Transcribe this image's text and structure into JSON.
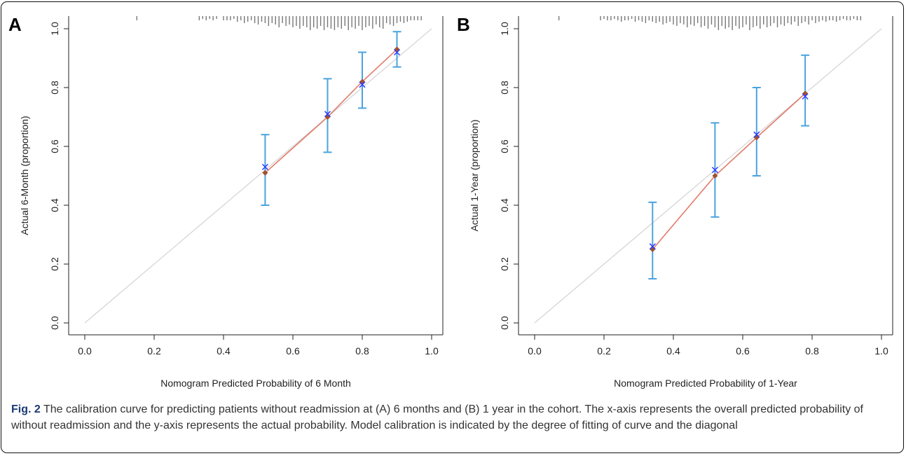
{
  "chart_data": [
    {
      "type": "line",
      "panel_label": "A",
      "xlabel": "Nomogram Predicted Probability of 6 Month",
      "ylabel": "Actual 6-Month (proportion)",
      "xlim": [
        0.0,
        1.0
      ],
      "ylim": [
        0.0,
        1.0
      ],
      "x_ticks": [
        "0.0",
        "0.2",
        "0.4",
        "0.6",
        "0.8",
        "1.0"
      ],
      "y_ticks": [
        "0.0",
        "0.2",
        "0.4",
        "0.6",
        "0.8",
        "1.0"
      ],
      "grid": false,
      "reference_line": "diagonal",
      "colors": {
        "apparent": "#a0522d",
        "bias_corrected": "#2a3cff",
        "error_bar": "#4aa3df",
        "diagonal": "#d6d6d6",
        "line": "#e07b6a",
        "rug": "#777777"
      },
      "points": [
        {
          "x": 0.52,
          "apparent": 0.51,
          "bias_corrected": 0.53,
          "lower": 0.4,
          "upper": 0.64
        },
        {
          "x": 0.7,
          "apparent": 0.7,
          "bias_corrected": 0.71,
          "lower": 0.58,
          "upper": 0.83
        },
        {
          "x": 0.8,
          "apparent": 0.82,
          "bias_corrected": 0.81,
          "lower": 0.73,
          "upper": 0.92
        },
        {
          "x": 0.9,
          "apparent": 0.93,
          "bias_corrected": 0.92,
          "lower": 0.87,
          "upper": 0.99
        }
      ],
      "rug_x": [
        0.15,
        0.33,
        0.34,
        0.35,
        0.36,
        0.37,
        0.38,
        0.4,
        0.41,
        0.42,
        0.43,
        0.44,
        0.45,
        0.46,
        0.47,
        0.48,
        0.49,
        0.5,
        0.51,
        0.52,
        0.53,
        0.54,
        0.55,
        0.56,
        0.57,
        0.58,
        0.59,
        0.6,
        0.61,
        0.62,
        0.63,
        0.64,
        0.65,
        0.66,
        0.67,
        0.68,
        0.69,
        0.7,
        0.71,
        0.72,
        0.73,
        0.74,
        0.75,
        0.76,
        0.77,
        0.78,
        0.79,
        0.8,
        0.81,
        0.82,
        0.83,
        0.84,
        0.85,
        0.86,
        0.87,
        0.88,
        0.89,
        0.9,
        0.91,
        0.92,
        0.93,
        0.94,
        0.95,
        0.96,
        0.97
      ],
      "rug_h": [
        0.3,
        0.3,
        0.2,
        0.3,
        0.2,
        0.3,
        0.2,
        0.3,
        0.3,
        0.3,
        0.2,
        0.4,
        0.3,
        0.5,
        0.4,
        0.3,
        0.5,
        0.6,
        0.4,
        0.5,
        0.7,
        0.5,
        0.6,
        0.8,
        0.5,
        0.7,
        0.6,
        0.8,
        0.7,
        0.9,
        0.7,
        0.8,
        1.0,
        0.8,
        0.9,
        0.7,
        1.0,
        0.8,
        0.9,
        1.0,
        0.8,
        0.9,
        0.7,
        1.0,
        0.8,
        0.9,
        0.7,
        1.0,
        0.8,
        0.7,
        0.9,
        0.6,
        0.8,
        0.9,
        0.5,
        0.6,
        0.7,
        0.5,
        0.4,
        0.5,
        0.4,
        0.3,
        0.3,
        0.3,
        0.3
      ]
    },
    {
      "type": "line",
      "panel_label": "B",
      "xlabel": "Nomogram Predicted Probability of 1-Year",
      "ylabel": "Actual 1-Year (proportion)",
      "xlim": [
        0.0,
        1.0
      ],
      "ylim": [
        0.0,
        1.0
      ],
      "x_ticks": [
        "0.0",
        "0.2",
        "0.4",
        "0.6",
        "0.8",
        "1.0"
      ],
      "y_ticks": [
        "0.0",
        "0.2",
        "0.4",
        "0.6",
        "0.8",
        "1.0"
      ],
      "grid": false,
      "reference_line": "diagonal",
      "colors": {
        "apparent": "#a0522d",
        "bias_corrected": "#2a3cff",
        "error_bar": "#4aa3df",
        "diagonal": "#d6d6d6",
        "line": "#e07b6a",
        "rug": "#777777"
      },
      "points": [
        {
          "x": 0.34,
          "apparent": 0.25,
          "bias_corrected": 0.26,
          "lower": 0.15,
          "upper": 0.41
        },
        {
          "x": 0.52,
          "apparent": 0.5,
          "bias_corrected": 0.52,
          "lower": 0.36,
          "upper": 0.68
        },
        {
          "x": 0.64,
          "apparent": 0.63,
          "bias_corrected": 0.64,
          "lower": 0.5,
          "upper": 0.8
        },
        {
          "x": 0.78,
          "apparent": 0.78,
          "bias_corrected": 0.77,
          "lower": 0.67,
          "upper": 0.91
        }
      ],
      "rug_x": [
        0.07,
        0.19,
        0.2,
        0.21,
        0.22,
        0.23,
        0.24,
        0.25,
        0.26,
        0.27,
        0.28,
        0.29,
        0.3,
        0.31,
        0.32,
        0.33,
        0.34,
        0.35,
        0.36,
        0.37,
        0.38,
        0.39,
        0.4,
        0.41,
        0.42,
        0.43,
        0.44,
        0.45,
        0.46,
        0.47,
        0.48,
        0.49,
        0.5,
        0.51,
        0.52,
        0.53,
        0.54,
        0.55,
        0.56,
        0.57,
        0.58,
        0.59,
        0.6,
        0.61,
        0.62,
        0.63,
        0.64,
        0.65,
        0.66,
        0.67,
        0.68,
        0.69,
        0.7,
        0.71,
        0.72,
        0.73,
        0.74,
        0.75,
        0.76,
        0.77,
        0.78,
        0.79,
        0.8,
        0.81,
        0.82,
        0.83,
        0.84,
        0.85,
        0.86,
        0.87,
        0.88,
        0.89,
        0.9,
        0.91,
        0.92,
        0.93,
        0.94
      ],
      "rug_h": [
        0.3,
        0.3,
        0.2,
        0.3,
        0.3,
        0.2,
        0.3,
        0.4,
        0.3,
        0.3,
        0.2,
        0.4,
        0.3,
        0.4,
        0.5,
        0.3,
        0.4,
        0.5,
        0.4,
        0.6,
        0.5,
        0.4,
        0.6,
        0.7,
        0.5,
        0.6,
        0.8,
        0.6,
        0.7,
        0.5,
        0.8,
        0.7,
        0.9,
        0.6,
        0.8,
        1.0,
        0.7,
        0.9,
        0.8,
        1.0,
        0.7,
        0.9,
        0.8,
        0.6,
        1.0,
        0.8,
        0.7,
        0.9,
        0.6,
        0.8,
        0.7,
        0.5,
        0.8,
        0.6,
        0.7,
        0.5,
        0.6,
        0.4,
        0.7,
        0.5,
        0.4,
        0.6,
        0.3,
        0.5,
        0.4,
        0.3,
        0.4,
        0.3,
        0.3,
        0.4,
        0.3,
        0.2,
        0.3,
        0.3,
        0.2,
        0.3,
        0.3
      ]
    }
  ],
  "caption": {
    "label": "Fig. 2",
    "text": "The calibration curve for predicting patients without readmission at (A) 6 months and (B) 1 year in the cohort. The x-axis represents the overall predicted probability of without readmission and the y-axis represents the actual probability. Model calibration is indicated by the degree of fitting of curve and the diagonal"
  }
}
